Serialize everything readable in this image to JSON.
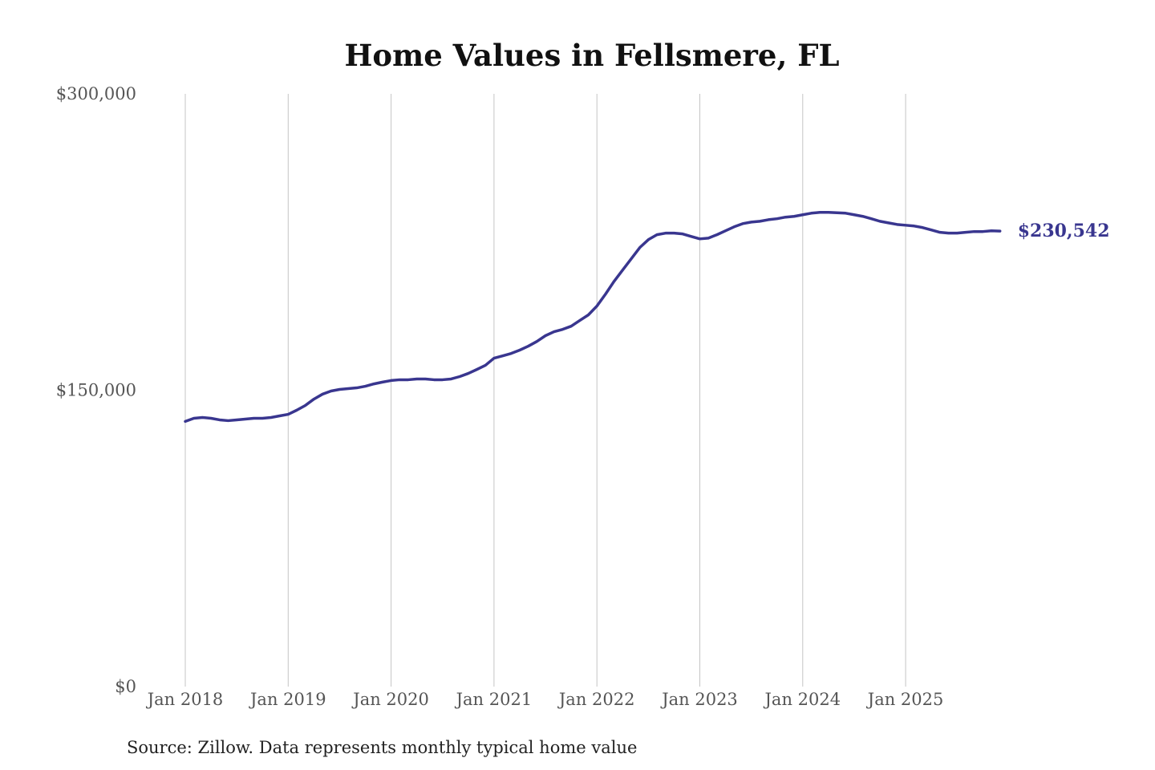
{
  "chart_data": {
    "type": "line",
    "title": "Home Values in Fellsmere, FL",
    "source": "Source: Zillow. Data represents monthly typical home value",
    "x": [
      "2018-01",
      "2018-02",
      "2018-03",
      "2018-04",
      "2018-05",
      "2018-06",
      "2018-07",
      "2018-08",
      "2018-09",
      "2018-10",
      "2018-11",
      "2018-12",
      "2019-01",
      "2019-02",
      "2019-03",
      "2019-04",
      "2019-05",
      "2019-06",
      "2019-07",
      "2019-08",
      "2019-09",
      "2019-10",
      "2019-11",
      "2019-12",
      "2020-01",
      "2020-02",
      "2020-03",
      "2020-04",
      "2020-05",
      "2020-06",
      "2020-07",
      "2020-08",
      "2020-09",
      "2020-10",
      "2020-11",
      "2020-12",
      "2021-01",
      "2021-02",
      "2021-03",
      "2021-04",
      "2021-05",
      "2021-06",
      "2021-07",
      "2021-08",
      "2021-09",
      "2021-10",
      "2021-11",
      "2021-12",
      "2022-01",
      "2022-02",
      "2022-03",
      "2022-04",
      "2022-05",
      "2022-06",
      "2022-07",
      "2022-08",
      "2022-09",
      "2022-10",
      "2022-11",
      "2022-12",
      "2023-01",
      "2023-02",
      "2023-03",
      "2023-04",
      "2023-05",
      "2023-06",
      "2023-07",
      "2023-08",
      "2023-09",
      "2023-10",
      "2023-11",
      "2023-12",
      "2024-01",
      "2024-02",
      "2024-03",
      "2024-04",
      "2024-05",
      "2024-06",
      "2024-07",
      "2024-08",
      "2024-09",
      "2024-10",
      "2024-11",
      "2024-12",
      "2025-01",
      "2025-02",
      "2025-03",
      "2025-04",
      "2025-05",
      "2025-06",
      "2025-07",
      "2025-08",
      "2025-09",
      "2025-10",
      "2025-11",
      "2025-12"
    ],
    "series": [
      {
        "name": "Fellsmere, FL",
        "color": "#39368f",
        "values": [
          134200,
          135800,
          136200,
          135800,
          135000,
          134600,
          135000,
          135400,
          135800,
          135800,
          136200,
          137000,
          137800,
          139900,
          142300,
          145500,
          148000,
          149600,
          150400,
          150800,
          151200,
          152000,
          153200,
          154100,
          154900,
          155300,
          155300,
          155700,
          155700,
          155300,
          155300,
          155700,
          156900,
          158500,
          160500,
          162600,
          166200,
          167400,
          168600,
          170300,
          172300,
          174700,
          177600,
          179600,
          180800,
          182400,
          185300,
          188100,
          192600,
          198600,
          205100,
          210800,
          216500,
          222200,
          226200,
          228700,
          229500,
          229500,
          229100,
          227800,
          226600,
          227000,
          228700,
          230700,
          232700,
          234300,
          235100,
          235500,
          236300,
          236800,
          237600,
          238000,
          238800,
          239600,
          240000,
          240000,
          239800,
          239600,
          238800,
          238000,
          236800,
          235500,
          234700,
          233900,
          233500,
          233100,
          232300,
          231100,
          229900,
          229500,
          229500,
          229900,
          230300,
          230300,
          230700,
          230542
        ],
        "value_labels": [
          null,
          null,
          null,
          null,
          null,
          null,
          null,
          null,
          null,
          null,
          null,
          null,
          null,
          null,
          null,
          null,
          null,
          null,
          null,
          null,
          null,
          null,
          null,
          null,
          null,
          null,
          null,
          null,
          null,
          null,
          null,
          null,
          null,
          null,
          null,
          null,
          null,
          null,
          null,
          null,
          null,
          null,
          null,
          null,
          null,
          null,
          null,
          null,
          null,
          null,
          null,
          null,
          null,
          null,
          null,
          null,
          null,
          null,
          null,
          null,
          null,
          null,
          null,
          null,
          null,
          null,
          null,
          null,
          null,
          null,
          null,
          null,
          null,
          null,
          null,
          null,
          null,
          null,
          null,
          null,
          null,
          null,
          null,
          null,
          null,
          null,
          null,
          null,
          null,
          null,
          null,
          null,
          null,
          null,
          null,
          "$230,542"
        ]
      }
    ],
    "xticks": [
      {
        "value": "2018-01",
        "label": "Jan 2018"
      },
      {
        "value": "2019-01",
        "label": "Jan 2019"
      },
      {
        "value": "2020-01",
        "label": "Jan 2020"
      },
      {
        "value": "2021-01",
        "label": "Jan 2021"
      },
      {
        "value": "2022-01",
        "label": "Jan 2022"
      },
      {
        "value": "2023-01",
        "label": "Jan 2023"
      },
      {
        "value": "2024-01",
        "label": "Jan 2024"
      },
      {
        "value": "2025-01",
        "label": "Jan 2025"
      }
    ],
    "ylim": [
      0,
      300000
    ],
    "yticks": [
      {
        "value": 0,
        "label": "$0"
      },
      {
        "value": 150000,
        "label": "$150,000"
      },
      {
        "value": 300000,
        "label": "$300,000"
      }
    ],
    "grid": "x"
  }
}
